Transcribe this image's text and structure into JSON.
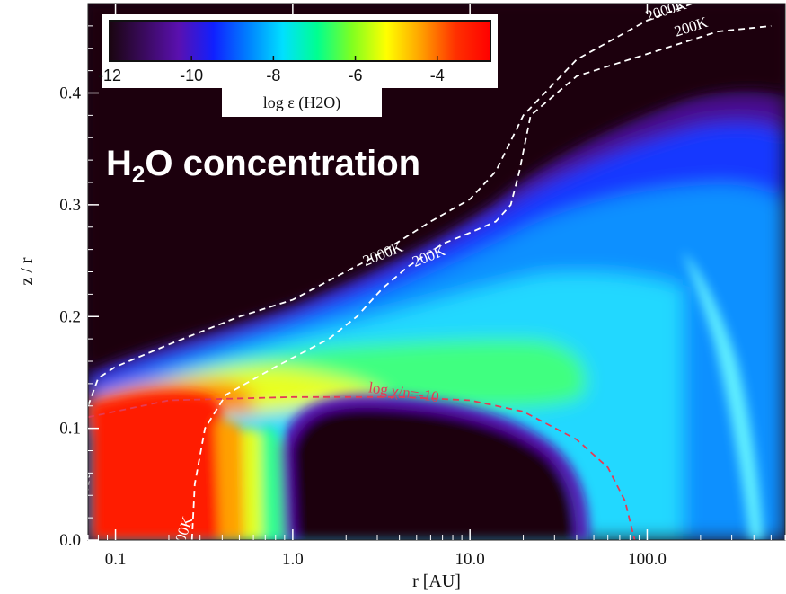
{
  "chart_data": {
    "type": "heatmap",
    "overlay_title": {
      "pre": "H",
      "sub": "2",
      "post": "O concentration"
    },
    "xlabel": "r [AU]",
    "ylabel": "z / r",
    "x_scale": "log",
    "xlim": [
      0.07,
      600
    ],
    "ylim": [
      0.0,
      0.48
    ],
    "x_ticks": [
      {
        "value": 0.1,
        "label": "0.1"
      },
      {
        "value": 1.0,
        "label": "1.0"
      },
      {
        "value": 10.0,
        "label": "10.0"
      },
      {
        "value": 100.0,
        "label": "100.0"
      }
    ],
    "y_ticks": [
      {
        "value": 0.0,
        "label": "0.0"
      },
      {
        "value": 0.1,
        "label": "0.1"
      },
      {
        "value": 0.2,
        "label": "0.2"
      },
      {
        "value": 0.3,
        "label": "0.3"
      },
      {
        "value": 0.4,
        "label": "0.4"
      }
    ],
    "colorbar": {
      "label": "log ε (H2O)",
      "range": [
        -12,
        -2.7
      ],
      "ticks": [
        {
          "value": -12,
          "label": "-12"
        },
        {
          "value": -10,
          "label": "-10"
        },
        {
          "value": -8,
          "label": "-8"
        },
        {
          "value": -6,
          "label": "-6"
        },
        {
          "value": -4,
          "label": "-4"
        }
      ],
      "colormap": [
        "#1a0510",
        "#3a0a5e",
        "#5a10b0",
        "#1020ff",
        "#0080ff",
        "#00e0ff",
        "#00ff90",
        "#80ff20",
        "#ffff00",
        "#ffa000",
        "#ff3000",
        "#ff0000"
      ]
    },
    "contours": [
      {
        "label": "2000K",
        "color": "#ffffff",
        "points": [
          [
            0.07,
            0.12
          ],
          [
            0.08,
            0.145
          ],
          [
            0.1,
            0.155
          ],
          [
            0.2,
            0.175
          ],
          [
            0.5,
            0.2
          ],
          [
            1.0,
            0.215
          ],
          [
            3.0,
            0.255
          ],
          [
            6.0,
            0.285
          ],
          [
            10.0,
            0.305
          ],
          [
            14.0,
            0.33
          ],
          [
            20.0,
            0.38
          ],
          [
            40.0,
            0.43
          ],
          [
            100.0,
            0.465
          ],
          [
            180.0,
            0.48
          ]
        ]
      },
      {
        "label": "200K",
        "color": "#ffffff",
        "points": [
          [
            0.27,
            0.0
          ],
          [
            0.28,
            0.05
          ],
          [
            0.32,
            0.1
          ],
          [
            0.42,
            0.13
          ],
          [
            0.8,
            0.155
          ],
          [
            1.6,
            0.18
          ],
          [
            2.3,
            0.2
          ],
          [
            3.2,
            0.225
          ],
          [
            4.5,
            0.245
          ],
          [
            7.0,
            0.265
          ],
          [
            10.0,
            0.275
          ],
          [
            14.0,
            0.285
          ],
          [
            17.0,
            0.3
          ],
          [
            19.0,
            0.33
          ],
          [
            22.0,
            0.38
          ],
          [
            40.0,
            0.415
          ],
          [
            100.0,
            0.435
          ],
          [
            250.0,
            0.455
          ],
          [
            500.0,
            0.46
          ]
        ]
      },
      {
        "label": "log χ/n=-10",
        "color": "#e43b55",
        "points": [
          [
            0.07,
            0.11
          ],
          [
            0.2,
            0.125
          ],
          [
            1.0,
            0.128
          ],
          [
            4.0,
            0.128
          ],
          [
            10.0,
            0.125
          ],
          [
            20.0,
            0.115
          ],
          [
            40.0,
            0.09
          ],
          [
            60.0,
            0.065
          ],
          [
            75.0,
            0.035
          ],
          [
            85.0,
            0.0
          ]
        ]
      }
    ],
    "contour_labels": [
      {
        "text": "2000K",
        "x": 130.0,
        "y": 0.47,
        "angle": -18,
        "color": "#ffffff"
      },
      {
        "text": "200K",
        "x": 180.0,
        "y": 0.455,
        "angle": -18,
        "color": "#ffffff"
      },
      {
        "text": "2000K",
        "x": 3.3,
        "y": 0.252,
        "angle": -22,
        "color": "#ffffff"
      },
      {
        "text": "200K",
        "x": 6.0,
        "y": 0.25,
        "angle": -22,
        "color": "#ffffff"
      },
      {
        "text": "log χ/n=-10",
        "x": 4.2,
        "y": 0.128,
        "angle": 8,
        "color": "#e43b55"
      },
      {
        "text": "200K",
        "x": 0.255,
        "y": 0.005,
        "angle": -72,
        "color": "#ffffff"
      },
      {
        "text": "2000K",
        "x": 0.07,
        "y": 0.04,
        "angle": -85,
        "color": "#ffffff"
      }
    ]
  }
}
